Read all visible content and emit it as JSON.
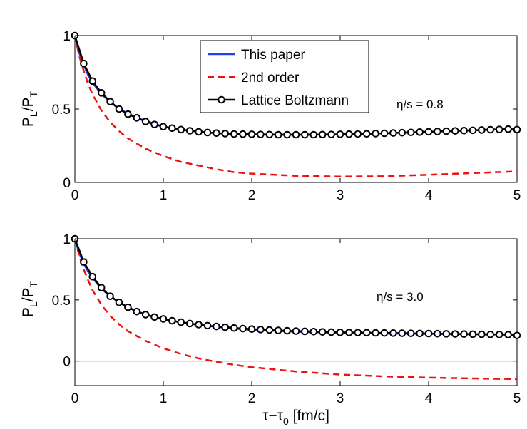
{
  "chart_data": [
    {
      "type": "line",
      "ylabel_main": "P",
      "ylabel_sub1": "L",
      "ylabel_sep": "/P",
      "ylabel_sub2": "T",
      "xlabel": "",
      "xlim": [
        0,
        5
      ],
      "ylim": [
        0,
        1
      ],
      "xticks": [
        "0",
        "1",
        "2",
        "3",
        "4",
        "5"
      ],
      "xtick_values": [
        0,
        1,
        2,
        3,
        4,
        5
      ],
      "yticks": [
        "0",
        "0.5",
        "1"
      ],
      "ytick_values": [
        0,
        0.5,
        1
      ],
      "annotation": "η/s = 0.8",
      "zero_line": false,
      "legend": {
        "placement": "top-center",
        "entries": [
          "This paper",
          "2nd order",
          "Lattice Boltzmann"
        ]
      },
      "series": [
        {
          "name": "This paper",
          "color": "#1f3ff5",
          "style": "solid",
          "x": [
            0,
            0.05,
            0.1,
            0.15,
            0.2,
            0.3,
            0.4,
            0.5,
            0.6,
            0.7,
            0.8,
            0.9,
            1.0,
            1.2,
            1.4,
            1.6,
            1.8,
            2.0,
            2.5,
            3.0,
            3.5,
            4.0,
            4.5,
            5.0
          ],
          "values": [
            1.0,
            0.88,
            0.8,
            0.73,
            0.68,
            0.6,
            0.55,
            0.5,
            0.47,
            0.44,
            0.42,
            0.4,
            0.38,
            0.36,
            0.345,
            0.335,
            0.33,
            0.327,
            0.325,
            0.327,
            0.335,
            0.345,
            0.355,
            0.368
          ]
        },
        {
          "name": "2nd order",
          "color": "#ee1111",
          "style": "dashed",
          "x": [
            0,
            0.05,
            0.1,
            0.15,
            0.2,
            0.3,
            0.4,
            0.5,
            0.6,
            0.8,
            1.0,
            1.2,
            1.4,
            1.6,
            1.8,
            2.0,
            2.5,
            3.0,
            3.5,
            4.0,
            4.5,
            5.0
          ],
          "values": [
            1.0,
            0.86,
            0.76,
            0.67,
            0.6,
            0.49,
            0.41,
            0.35,
            0.3,
            0.23,
            0.18,
            0.14,
            0.115,
            0.09,
            0.07,
            0.06,
            0.045,
            0.04,
            0.042,
            0.052,
            0.064,
            0.075
          ]
        },
        {
          "name": "Lattice Boltzmann",
          "color": "#000000",
          "style": "solid-marker",
          "x": [
            0,
            0.1,
            0.2,
            0.3,
            0.4,
            0.5,
            0.6,
            0.7,
            0.8,
            0.9,
            1.0,
            1.1,
            1.2,
            1.3,
            1.4,
            1.5,
            1.6,
            1.7,
            1.8,
            1.9,
            2.0,
            2.1,
            2.2,
            2.3,
            2.4,
            2.5,
            2.6,
            2.7,
            2.8,
            2.9,
            3.0,
            3.1,
            3.2,
            3.3,
            3.4,
            3.5,
            3.6,
            3.7,
            3.8,
            3.9,
            4.0,
            4.1,
            4.2,
            4.3,
            4.4,
            4.5,
            4.6,
            4.7,
            4.8,
            4.9,
            5.0
          ],
          "values": [
            1.0,
            0.81,
            0.69,
            0.61,
            0.55,
            0.5,
            0.465,
            0.44,
            0.415,
            0.395,
            0.38,
            0.37,
            0.36,
            0.352,
            0.345,
            0.34,
            0.336,
            0.333,
            0.33,
            0.329,
            0.328,
            0.327,
            0.326,
            0.325,
            0.325,
            0.325,
            0.325,
            0.325,
            0.326,
            0.327,
            0.328,
            0.329,
            0.33,
            0.331,
            0.333,
            0.335,
            0.337,
            0.339,
            0.341,
            0.343,
            0.345,
            0.347,
            0.349,
            0.351,
            0.353,
            0.355,
            0.357,
            0.359,
            0.361,
            0.363,
            0.36
          ],
          "markers": true
        }
      ]
    },
    {
      "type": "line",
      "ylabel_main": "P",
      "ylabel_sub1": "L",
      "ylabel_sep": "/P",
      "ylabel_sub2": "T",
      "xlabel_main": "τ−τ",
      "xlabel_sub": "0",
      "xlabel_rest": " [fm/c]",
      "xlim": [
        0,
        5
      ],
      "ylim": [
        -0.2,
        1
      ],
      "xticks": [
        "0",
        "1",
        "2",
        "3",
        "4",
        "5"
      ],
      "xtick_values": [
        0,
        1,
        2,
        3,
        4,
        5
      ],
      "yticks": [
        "0",
        "0.5",
        "1"
      ],
      "ytick_values": [
        0,
        0.5,
        1
      ],
      "annotation": "η/s = 3.0",
      "zero_line": true,
      "series": [
        {
          "name": "This paper",
          "color": "#1f3ff5",
          "style": "solid",
          "x": [
            0,
            0.05,
            0.1,
            0.15,
            0.2,
            0.3,
            0.4,
            0.5,
            0.6,
            0.7,
            0.8,
            0.9,
            1.0,
            1.2,
            1.4,
            1.6,
            1.8,
            2.0,
            2.5,
            3.0,
            3.5,
            4.0,
            4.5,
            5.0
          ],
          "values": [
            1.0,
            0.88,
            0.8,
            0.73,
            0.68,
            0.59,
            0.53,
            0.48,
            0.44,
            0.41,
            0.38,
            0.36,
            0.345,
            0.315,
            0.295,
            0.28,
            0.265,
            0.255,
            0.24,
            0.23,
            0.225,
            0.222,
            0.22,
            0.218
          ]
        },
        {
          "name": "2nd order",
          "color": "#ee1111",
          "style": "dashed",
          "x": [
            0,
            0.05,
            0.1,
            0.15,
            0.2,
            0.3,
            0.4,
            0.5,
            0.6,
            0.8,
            1.0,
            1.2,
            1.4,
            1.6,
            1.8,
            2.0,
            2.5,
            3.0,
            3.5,
            4.0,
            4.5,
            5.0
          ],
          "values": [
            1.0,
            0.86,
            0.75,
            0.66,
            0.58,
            0.46,
            0.37,
            0.3,
            0.245,
            0.165,
            0.105,
            0.058,
            0.022,
            -0.006,
            -0.03,
            -0.05,
            -0.085,
            -0.11,
            -0.125,
            -0.135,
            -0.142,
            -0.147
          ]
        },
        {
          "name": "Lattice Boltzmann",
          "color": "#000000",
          "style": "solid-marker",
          "x": [
            0,
            0.1,
            0.2,
            0.3,
            0.4,
            0.5,
            0.6,
            0.7,
            0.8,
            0.9,
            1.0,
            1.1,
            1.2,
            1.3,
            1.4,
            1.5,
            1.6,
            1.7,
            1.8,
            1.9,
            2.0,
            2.1,
            2.2,
            2.3,
            2.4,
            2.5,
            2.6,
            2.7,
            2.8,
            2.9,
            3.0,
            3.1,
            3.2,
            3.3,
            3.4,
            3.5,
            3.6,
            3.7,
            3.8,
            3.9,
            4.0,
            4.1,
            4.2,
            4.3,
            4.4,
            4.5,
            4.6,
            4.7,
            4.8,
            4.9,
            5.0
          ],
          "values": [
            1.0,
            0.81,
            0.69,
            0.6,
            0.53,
            0.48,
            0.44,
            0.405,
            0.38,
            0.36,
            0.345,
            0.33,
            0.318,
            0.307,
            0.298,
            0.29,
            0.283,
            0.277,
            0.271,
            0.266,
            0.262,
            0.258,
            0.254,
            0.251,
            0.248,
            0.245,
            0.243,
            0.241,
            0.239,
            0.237,
            0.235,
            0.234,
            0.233,
            0.232,
            0.231,
            0.23,
            0.229,
            0.228,
            0.227,
            0.226,
            0.225,
            0.224,
            0.223,
            0.222,
            0.221,
            0.22,
            0.219,
            0.218,
            0.217,
            0.216,
            0.21
          ],
          "markers": true
        }
      ]
    }
  ]
}
